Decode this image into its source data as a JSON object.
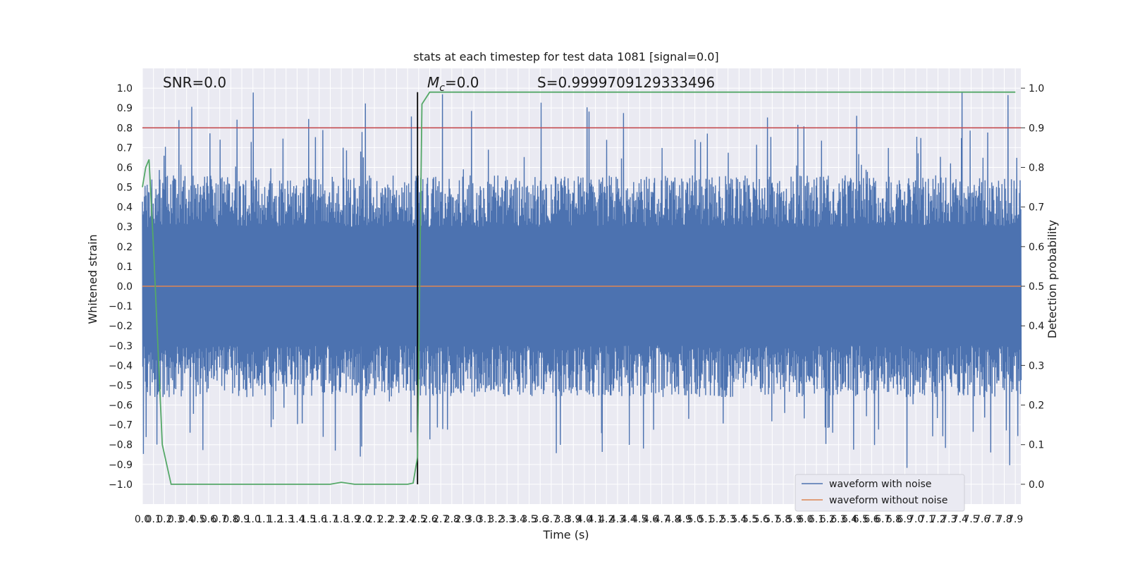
{
  "chart_data": {
    "type": "line",
    "title": "stats at each timestep for test data 1081 [signal=0.0]",
    "xlabel": "Time (s)",
    "ylabel": "Whitened strain",
    "y2label": "Detection probability",
    "xlim": [
      0.0,
      7.95
    ],
    "ylim": [
      -1.1,
      1.1
    ],
    "y2lim": [
      -0.05,
      1.05
    ],
    "x_tick_step": 0.1,
    "x_tick_count": 80,
    "y_ticks": [
      "1.0",
      "0.9",
      "0.8",
      "0.7",
      "0.6",
      "0.5",
      "0.4",
      "0.3",
      "0.2",
      "0.1",
      "0.0",
      "-0.1",
      "-0.2",
      "-0.3",
      "-0.4",
      "-0.5",
      "-0.6",
      "-0.7",
      "-0.8",
      "-0.9",
      "-1.0"
    ],
    "y2_ticks": [
      "1.0",
      "0.9",
      "0.8",
      "0.7",
      "0.6",
      "0.5",
      "0.4",
      "0.3",
      "0.2",
      "0.1",
      "0.0"
    ],
    "grid": true,
    "legend_position": "lower-right",
    "annotations": {
      "snr": "SNR=0.0",
      "mc_symbol": "M",
      "mc_sub": "c",
      "mc_value": "=0.0",
      "s": "S=0.9999709129333496"
    },
    "threshold": {
      "value": 0.9,
      "axis": "right",
      "color": "#c44e52"
    },
    "event_time": 2.49,
    "series": [
      {
        "name": "waveform with noise",
        "color": "#4c72b0",
        "axis": "left",
        "sample_rate": 2048,
        "upper_envelope": "approx. 0.3–0.6, spikes to 0.98",
        "lower_envelope": "approx. -0.3 to -0.6, dips to -1.0"
      },
      {
        "name": "waveform without noise",
        "color": "#dd8452",
        "axis": "left",
        "x": [
          0.0,
          7.95
        ],
        "y": [
          0.0,
          0.0
        ]
      },
      {
        "color": "#55a868",
        "axis": "right",
        "x": [
          0.0,
          0.03,
          0.06,
          0.1,
          0.18,
          0.26,
          0.5,
          1.0,
          1.5,
          1.7,
          1.8,
          1.92,
          2.0,
          2.2,
          2.3,
          2.4,
          2.45,
          2.49,
          2.53,
          2.6,
          3.0,
          4.0,
          5.0,
          6.0,
          7.0,
          7.9
        ],
        "y": [
          0.75,
          0.8,
          0.82,
          0.6,
          0.1,
          0.0,
          0.0,
          0.0,
          0.0,
          0.0,
          0.005,
          0.0,
          0.0,
          0.0,
          0.0,
          0.0,
          0.003,
          0.07,
          0.96,
          0.99,
          0.99,
          0.99,
          0.99,
          0.99,
          0.99,
          0.99
        ]
      }
    ]
  }
}
